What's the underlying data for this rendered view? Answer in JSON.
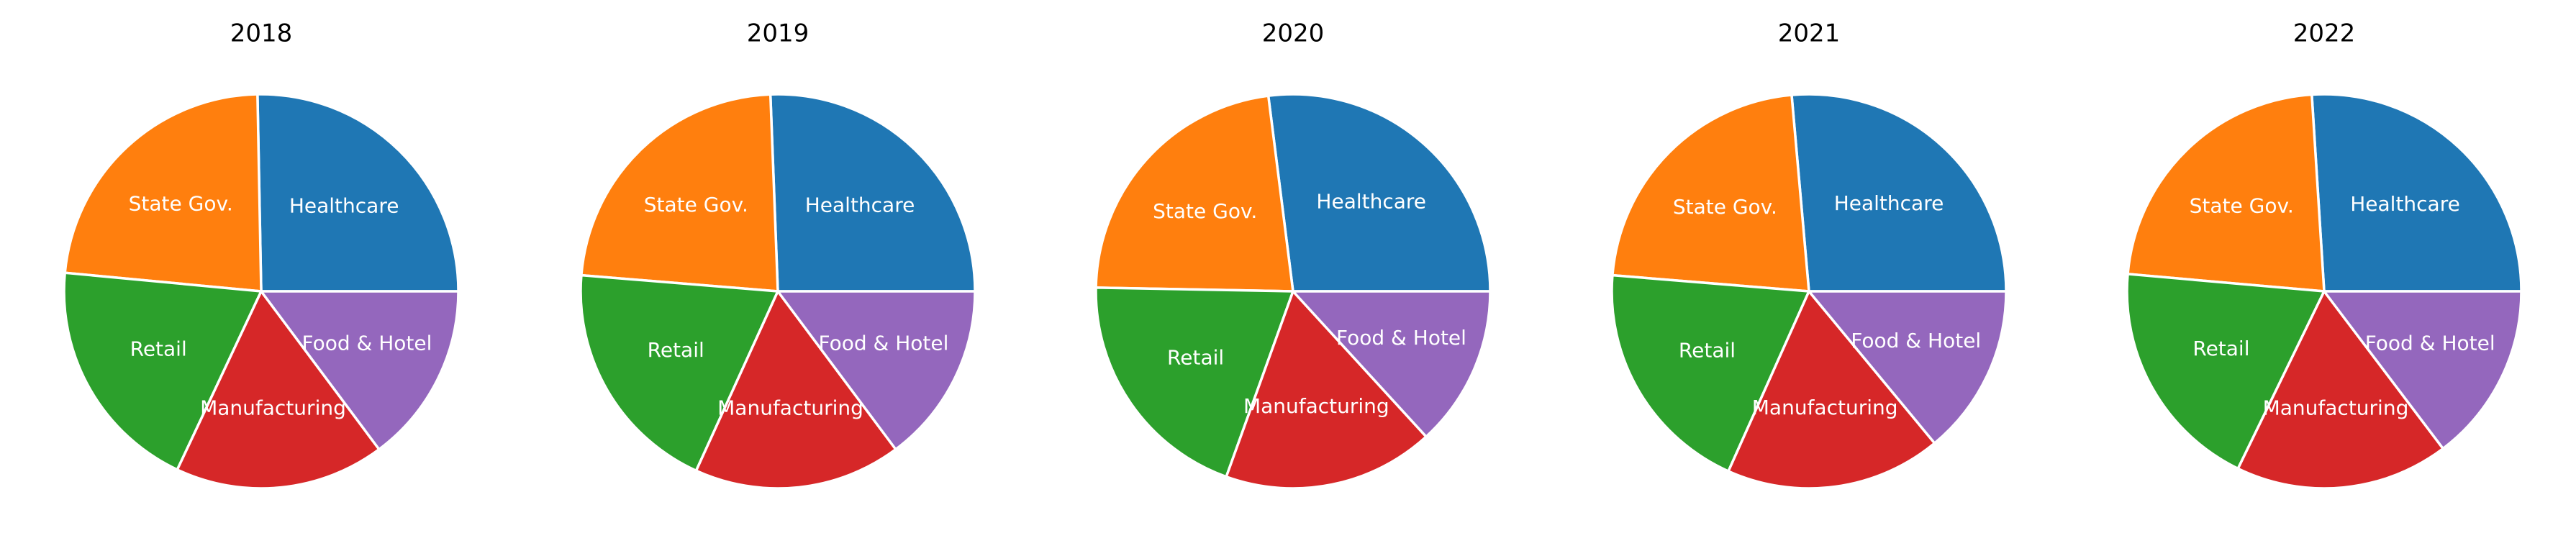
{
  "chart_data": [
    {
      "type": "pie",
      "title": "2018",
      "slices": [
        {
          "label": "Healthcare",
          "value": 25.3,
          "color": "#1f77b4"
        },
        {
          "label": "State Gov.",
          "value": 23.2,
          "color": "#ff7f0e"
        },
        {
          "label": "Retail",
          "value": 19.5,
          "color": "#2ca02c"
        },
        {
          "label": "Manufacturing",
          "value": 17.2,
          "color": "#d62728"
        },
        {
          "label": "Food & Hotel",
          "value": 14.8,
          "color": "#9467bd"
        }
      ]
    },
    {
      "type": "pie",
      "title": "2019",
      "slices": [
        {
          "label": "Healthcare",
          "value": 25.6,
          "color": "#1f77b4"
        },
        {
          "label": "State Gov.",
          "value": 23.1,
          "color": "#ff7f0e"
        },
        {
          "label": "Retail",
          "value": 19.5,
          "color": "#2ca02c"
        },
        {
          "label": "Manufacturing",
          "value": 17.0,
          "color": "#d62728"
        },
        {
          "label": "Food & Hotel",
          "value": 14.8,
          "color": "#9467bd"
        }
      ]
    },
    {
      "type": "pie",
      "title": "2020",
      "slices": [
        {
          "label": "Healthcare",
          "value": 27.0,
          "color": "#1f77b4"
        },
        {
          "label": "State Gov.",
          "value": 22.7,
          "color": "#ff7f0e"
        },
        {
          "label": "Retail",
          "value": 19.8,
          "color": "#2ca02c"
        },
        {
          "label": "Manufacturing",
          "value": 17.3,
          "color": "#d62728"
        },
        {
          "label": "Food & Hotel",
          "value": 13.2,
          "color": "#9467bd"
        }
      ]
    },
    {
      "type": "pie",
      "title": "2021",
      "slices": [
        {
          "label": "Healthcare",
          "value": 26.4,
          "color": "#1f77b4"
        },
        {
          "label": "State Gov.",
          "value": 22.3,
          "color": "#ff7f0e"
        },
        {
          "label": "Retail",
          "value": 19.6,
          "color": "#2ca02c"
        },
        {
          "label": "Manufacturing",
          "value": 17.7,
          "color": "#d62728"
        },
        {
          "label": "Food & Hotel",
          "value": 14.0,
          "color": "#9467bd"
        }
      ]
    },
    {
      "type": "pie",
      "title": "2022",
      "slices": [
        {
          "label": "Healthcare",
          "value": 26.0,
          "color": "#1f77b4"
        },
        {
          "label": "State Gov.",
          "value": 22.6,
          "color": "#ff7f0e"
        },
        {
          "label": "Retail",
          "value": 19.2,
          "color": "#2ca02c"
        },
        {
          "label": "Manufacturing",
          "value": 17.5,
          "color": "#d62728"
        },
        {
          "label": "Food & Hotel",
          "value": 14.7,
          "color": "#9467bd"
        }
      ]
    }
  ]
}
